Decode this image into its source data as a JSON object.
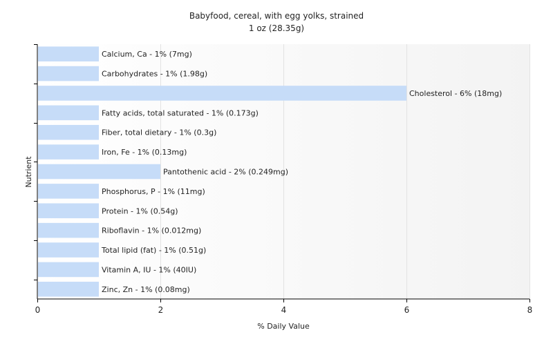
{
  "chart_data": {
    "type": "bar",
    "orientation": "horizontal",
    "title": "Babyfood, cereal, with egg yolks, strained",
    "subtitle": "1 oz (28.35g)",
    "xlabel": "% Daily Value",
    "ylabel": "Nutrient",
    "xlim": [
      0,
      8
    ],
    "xticks": [
      0,
      2,
      4,
      6,
      8
    ],
    "grid": true,
    "bar_color": "#c6dcf8",
    "categories": [
      "Calcium, Ca",
      "Carbohydrates",
      "Cholesterol",
      "Fatty acids, total saturated",
      "Fiber, total dietary",
      "Iron, Fe",
      "Pantothenic acid",
      "Phosphorus, P",
      "Protein",
      "Riboflavin",
      "Total lipid (fat)",
      "Vitamin A, IU",
      "Zinc, Zn"
    ],
    "values": [
      1,
      1,
      6,
      1,
      1,
      1,
      2,
      1,
      1,
      1,
      1,
      1,
      1
    ],
    "labels": [
      "Calcium, Ca - 1% (7mg)",
      "Carbohydrates - 1% (1.98g)",
      "Cholesterol - 6% (18mg)",
      "Fatty acids, total saturated - 1% (0.173g)",
      "Fiber, total dietary - 1% (0.3g)",
      "Iron, Fe - 1% (0.13mg)",
      "Pantothenic acid - 2% (0.249mg)",
      "Phosphorus, P - 1% (11mg)",
      "Protein - 1% (0.54g)",
      "Riboflavin - 1% (0.012mg)",
      "Total lipid (fat) - 1% (0.51g)",
      "Vitamin A, IU - 1% (40IU)",
      "Zinc, Zn - 1% (0.08mg)"
    ]
  }
}
